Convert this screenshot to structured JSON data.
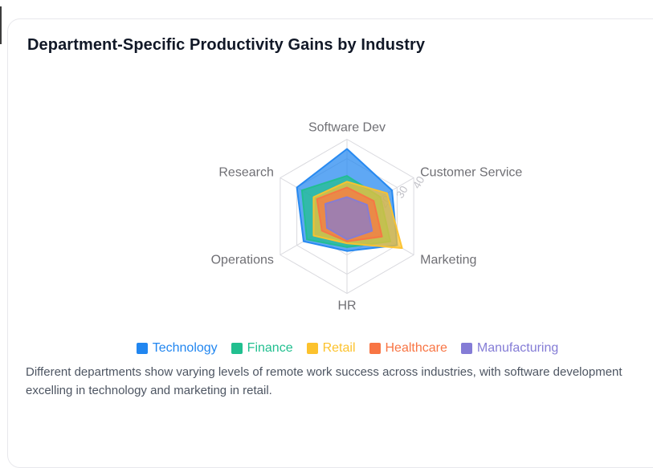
{
  "card": {
    "title": "Department-Specific Productivity Gains by Industry"
  },
  "caption": "Different departments show varying levels of remote work success across industries, with software development excelling in technology and marketing in retail.",
  "chart_data": {
    "type": "radar",
    "title": "Department-Specific Productivity Gains by Industry",
    "categories": [
      "Software Dev",
      "Customer Service",
      "Marketing",
      "HR",
      "Operations",
      "Research"
    ],
    "series": [
      {
        "name": "Technology",
        "color": "#2186f0",
        "values": [
          35,
          27,
          30,
          18,
          26,
          30
        ]
      },
      {
        "name": "Finance",
        "color": "#21bf8f",
        "values": [
          21,
          20,
          26,
          16,
          24,
          27
        ]
      },
      {
        "name": "Retail",
        "color": "#fcc22d",
        "values": [
          18,
          24,
          33,
          14,
          20,
          20
        ]
      },
      {
        "name": "Healthcare",
        "color": "#f87544",
        "values": [
          15,
          16,
          21,
          13,
          15,
          18
        ]
      },
      {
        "name": "Manufacturing",
        "color": "#847cd6",
        "values": [
          10,
          12,
          15,
          12,
          12,
          13
        ]
      }
    ],
    "rings": [
      10,
      20,
      30,
      40
    ],
    "radial_ticks": [
      20,
      30,
      40
    ],
    "radial_axis_category": "Customer Service",
    "min": 0,
    "max": 40,
    "grid": true,
    "legend_position": "bottom",
    "colors": {
      "grid": "#d9d9de",
      "axis_label": "#6f6f74",
      "tick_label": "#c2c2c8",
      "title": "#111827",
      "caption": "#4d5562",
      "card_border": "#e8e8ec"
    }
  }
}
